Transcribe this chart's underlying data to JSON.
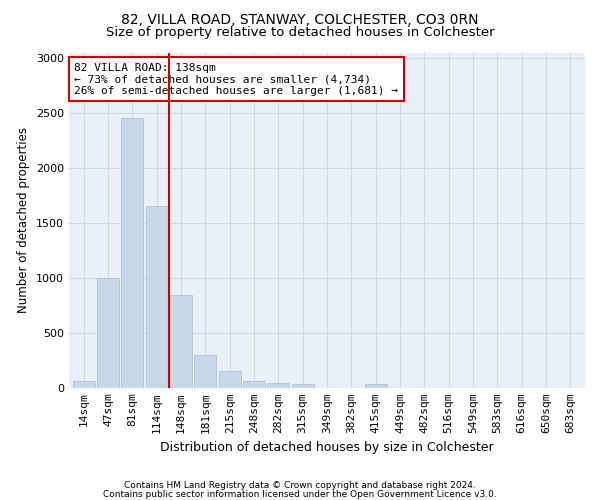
{
  "title1": "82, VILLA ROAD, STANWAY, COLCHESTER, CO3 0RN",
  "title2": "Size of property relative to detached houses in Colchester",
  "xlabel": "Distribution of detached houses by size in Colchester",
  "ylabel": "Number of detached properties",
  "footnote1": "Contains HM Land Registry data © Crown copyright and database right 2024.",
  "footnote2": "Contains public sector information licensed under the Open Government Licence v3.0.",
  "bar_labels": [
    "14sqm",
    "47sqm",
    "81sqm",
    "114sqm",
    "148sqm",
    "181sqm",
    "215sqm",
    "248sqm",
    "282sqm",
    "315sqm",
    "349sqm",
    "382sqm",
    "415sqm",
    "449sqm",
    "482sqm",
    "516sqm",
    "549sqm",
    "583sqm",
    "616sqm",
    "650sqm",
    "683sqm"
  ],
  "bar_values": [
    55,
    1000,
    2450,
    1650,
    840,
    295,
    150,
    55,
    40,
    30,
    0,
    0,
    30,
    0,
    0,
    0,
    0,
    0,
    0,
    0,
    0
  ],
  "bar_color": "#c8d8e8",
  "bar_edgecolor": "#aabcce",
  "vline_color": "#cc0000",
  "vline_x_index": 3,
  "annotation_text": "82 VILLA ROAD: 138sqm\n← 73% of detached houses are smaller (4,734)\n26% of semi-detached houses are larger (1,681) →",
  "annotation_box_facecolor": "#ffffff",
  "annotation_box_edgecolor": "#cc0000",
  "ylim": [
    0,
    3050
  ],
  "yticks": [
    0,
    500,
    1000,
    1500,
    2000,
    2500,
    3000
  ],
  "grid_color": "#d0d8e8",
  "bg_color": "#eaf0f8",
  "title1_fontsize": 10,
  "title2_fontsize": 9.5,
  "xlabel_fontsize": 9,
  "ylabel_fontsize": 8.5,
  "tick_fontsize": 8
}
